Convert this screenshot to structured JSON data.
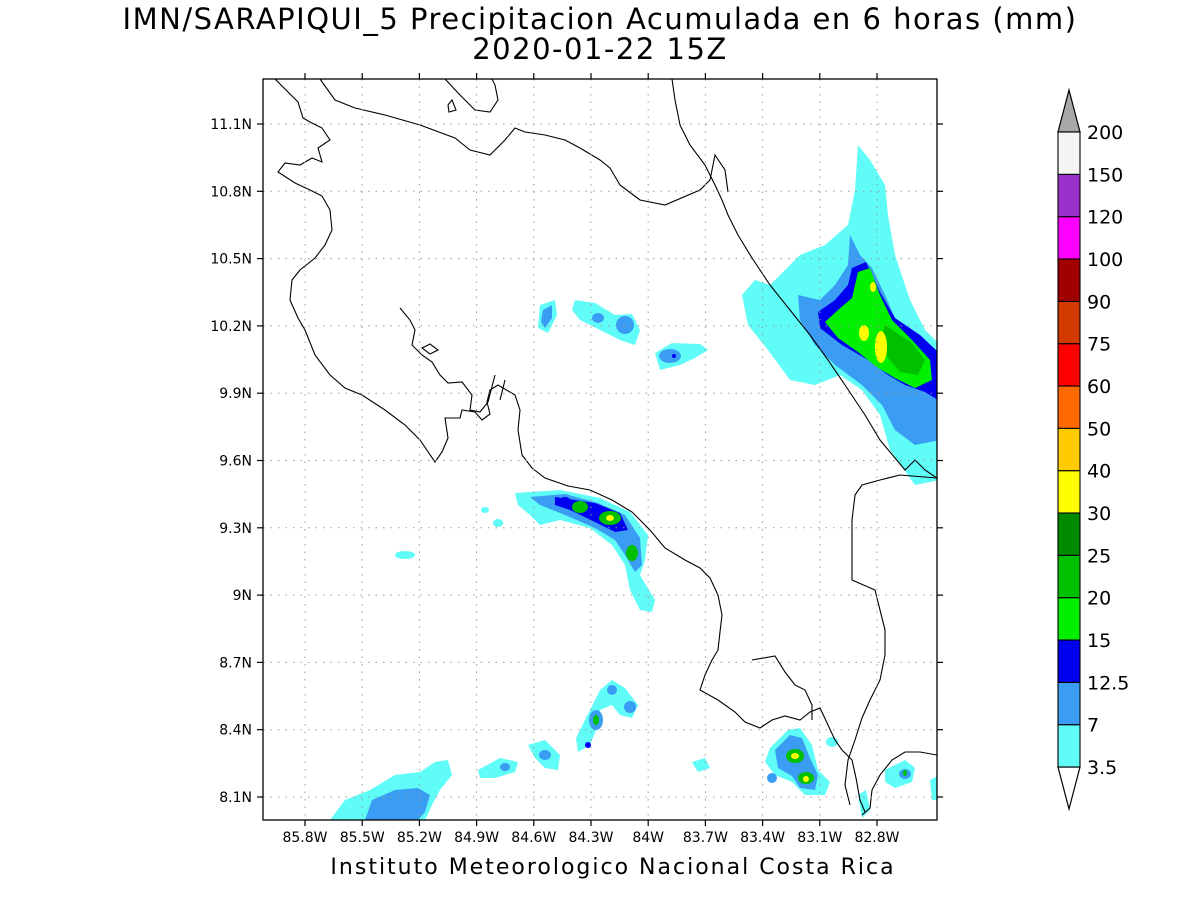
{
  "title": "IMN/SARAPIQUI_5 Precipitacion Acumulada en 6 horas (mm)",
  "subtitle": "2020-01-22 15Z",
  "footer": "Instituto Meteorologico Nacional Costa Rica",
  "map": {
    "lat_ticks": [
      "11.1N",
      "10.8N",
      "10.5N",
      "10.2N",
      "9.9N",
      "9.6N",
      "9.3N",
      "9N",
      "8.7N",
      "8.4N",
      "8.1N"
    ],
    "lon_ticks": [
      "85.8W",
      "85.5W",
      "85.2W",
      "84.9W",
      "84.6W",
      "84.3W",
      "84W",
      "83.7W",
      "83.4W",
      "83.1W",
      "82.8W"
    ]
  },
  "colorbar": {
    "colors": [
      "#5ffcf8",
      "#3b9cf4",
      "#0000f0",
      "#00f000",
      "#00c000",
      "#008a00",
      "#ffff00",
      "#ffca00",
      "#ff6a00",
      "#ff0000",
      "#d23a00",
      "#a00000",
      "#ff00ff",
      "#9932cc",
      "#f4f4f4"
    ],
    "labels": [
      "3.5",
      "7",
      "12.5",
      "15",
      "20",
      "25",
      "30",
      "40",
      "50",
      "60",
      "75",
      "90",
      "100",
      "120",
      "150",
      "200"
    ],
    "under_color": "#ffffff",
    "over_color": "#a8a8a8"
  }
}
